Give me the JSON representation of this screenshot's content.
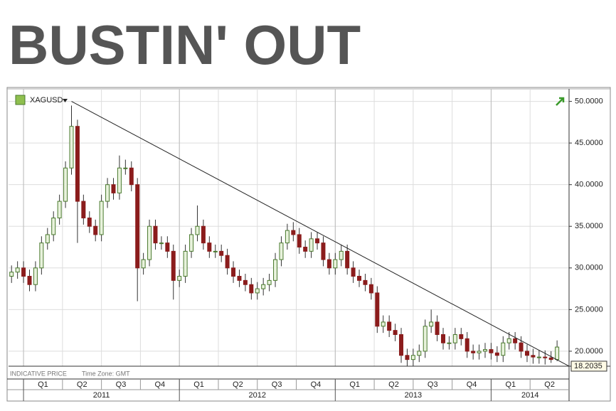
{
  "chart_data": {
    "type": "candlestick",
    "title": "BUSTIN' OUT",
    "symbol": "XAGUSD",
    "footer_note": "INDICATIVE PRICE",
    "time_zone": "Time Zone: GMT",
    "up_color": "#4a7a2e",
    "down_color": "#8b1c1c",
    "grid": true,
    "xlim": [
      0,
      187
    ],
    "ylim": [
      18.2,
      51.5
    ],
    "yticks": [
      {
        "value": 20,
        "label": "20.0000"
      },
      {
        "value": 25,
        "label": "25.0000"
      },
      {
        "value": 30,
        "label": "30.0000"
      },
      {
        "value": 35,
        "label": "35.0000"
      },
      {
        "value": 40,
        "label": "40.0000"
      },
      {
        "value": 45,
        "label": "45.0000"
      },
      {
        "value": 50,
        "label": "50.0000"
      }
    ],
    "xticks": [
      {
        "value": 5,
        "label": "Q1"
      },
      {
        "value": 18,
        "label": "Q2"
      },
      {
        "value": 31,
        "label": "Q3"
      },
      {
        "value": 44,
        "label": "Q4"
      },
      {
        "value": 57,
        "label": "Q1"
      },
      {
        "value": 70,
        "label": "Q2"
      },
      {
        "value": 83,
        "label": "Q3"
      },
      {
        "value": 96,
        "label": "Q4"
      },
      {
        "value": 109,
        "label": "Q1"
      },
      {
        "value": 122,
        "label": "Q2"
      },
      {
        "value": 135,
        "label": "Q3"
      },
      {
        "value": 148,
        "label": "Q4"
      },
      {
        "value": 161,
        "label": "Q1"
      },
      {
        "value": 174,
        "label": "Q2"
      }
    ],
    "years": [
      {
        "value": 5,
        "label": "2011"
      },
      {
        "value": 57,
        "label": "2012"
      },
      {
        "value": 109,
        "label": "2013"
      },
      {
        "value": 161,
        "label": "2014"
      }
    ],
    "trendline": {
      "x": [
        21,
        187
      ],
      "y": [
        50,
        18.2035
      ]
    },
    "x": [
      1,
      3,
      5,
      7,
      9,
      11,
      13,
      15,
      17,
      19,
      21,
      23,
      25,
      27,
      29,
      31,
      33,
      35,
      37,
      39,
      41,
      43,
      45,
      47,
      49,
      51,
      53,
      55,
      57,
      59,
      61,
      63,
      65,
      67,
      69,
      71,
      73,
      75,
      77,
      79,
      81,
      83,
      85,
      87,
      89,
      91,
      93,
      95,
      97,
      99,
      101,
      103,
      105,
      107,
      109,
      111,
      113,
      115,
      117,
      119,
      121,
      123,
      125,
      127,
      129,
      131,
      133,
      135,
      137,
      139,
      141,
      143,
      145,
      147,
      149,
      151,
      153,
      155,
      157,
      159,
      161,
      163,
      165,
      167,
      169,
      171,
      173,
      175,
      177,
      179,
      181,
      183
    ],
    "open": [
      29,
      29.5,
      30,
      29,
      28,
      30,
      33,
      34,
      36,
      38,
      42,
      47,
      38,
      36,
      35,
      34,
      38,
      40,
      39,
      42,
      42,
      40,
      30,
      31,
      35,
      33,
      33,
      32,
      28.5,
      29,
      32,
      34,
      35,
      33,
      32,
      32,
      31.5,
      30,
      29,
      28.5,
      28,
      27,
      27.5,
      28,
      28.5,
      31,
      33,
      34.5,
      34,
      32.5,
      32,
      33.5,
      33,
      31,
      30,
      31,
      32,
      30,
      29,
      28.5,
      28,
      27,
      23,
      23.5,
      22.5,
      22,
      19.5,
      19,
      19.5,
      20,
      23,
      23.5,
      22,
      21,
      21,
      22,
      21.5,
      20,
      19.8,
      20,
      20.2,
      19.8,
      19.5,
      21,
      21.5,
      21,
      20,
      19.5,
      19.3,
      19.3,
      19.2,
      19
    ],
    "high": [
      30.3,
      30.8,
      30.8,
      29.8,
      30.8,
      33.8,
      34.8,
      36.8,
      38.8,
      42.8,
      49.5,
      47.8,
      38.8,
      36.8,
      35.8,
      38.8,
      40.8,
      40.8,
      43.5,
      43,
      42.8,
      40.8,
      31.8,
      35.8,
      35.8,
      33.8,
      33.8,
      32.8,
      29.8,
      32.8,
      34.8,
      37.5,
      35.8,
      33.8,
      32.8,
      32.8,
      32.3,
      30.8,
      29.8,
      29.3,
      28.8,
      28.3,
      28.8,
      29.3,
      31.8,
      33.8,
      35.3,
      35.5,
      34.8,
      33.3,
      34.3,
      34.3,
      33.8,
      31.8,
      31.8,
      32.8,
      32.8,
      30.8,
      29.8,
      29.3,
      28.8,
      27.8,
      24.3,
      24.3,
      23.3,
      22.8,
      20.3,
      20.3,
      20.8,
      23.8,
      25,
      24.3,
      22.8,
      21.8,
      22.8,
      22.8,
      22.3,
      20.8,
      20.8,
      21,
      21,
      20.6,
      21.8,
      22.3,
      22.3,
      21.8,
      20.8,
      20.3,
      20.1,
      20.1,
      20,
      21.3
    ],
    "low": [
      28.2,
      28.7,
      28.2,
      27.2,
      27.2,
      29.2,
      32.2,
      33.2,
      35.2,
      37.2,
      41.2,
      33,
      35.2,
      34.2,
      33.2,
      33.2,
      37.2,
      38.2,
      38.2,
      41.2,
      39.2,
      26,
      29.2,
      30.2,
      32.2,
      32.2,
      31.2,
      26.2,
      27.7,
      28.2,
      31.2,
      33.2,
      32.2,
      31.2,
      31.2,
      30.7,
      29.2,
      28.2,
      27.7,
      27.2,
      26.2,
      26.2,
      26.7,
      27.2,
      27.7,
      30.2,
      32.2,
      33.2,
      31.7,
      31.2,
      31.2,
      32.2,
      30.2,
      29.2,
      29.2,
      30.2,
      29.2,
      28.2,
      27.7,
      27.2,
      26.2,
      22.2,
      22.2,
      21.7,
      21.2,
      18.6,
      18.2,
      18.2,
      18.7,
      19.2,
      22.2,
      21.2,
      20.2,
      20.2,
      20.2,
      20.7,
      19.2,
      19,
      19,
      19.2,
      19,
      18.7,
      18.7,
      20.2,
      20.2,
      19.2,
      18.7,
      18.5,
      18.5,
      18.4,
      18.6,
      18.8
    ],
    "close": [
      29.5,
      30,
      29,
      28,
      30,
      33,
      34,
      36,
      38,
      42,
      47,
      38,
      36,
      35,
      34,
      38,
      40,
      39,
      42,
      42,
      40,
      30,
      31,
      35,
      33,
      33,
      32,
      28.5,
      29,
      32,
      34,
      35,
      33,
      32,
      32,
      31.5,
      30,
      29,
      28.5,
      28,
      27,
      27.5,
      28,
      28.5,
      31,
      33,
      34.5,
      34,
      32.5,
      32,
      33.5,
      33,
      31,
      30,
      31,
      32,
      30,
      29,
      28.5,
      28,
      27,
      23,
      23.5,
      22.5,
      22,
      19.5,
      19,
      19.5,
      20,
      23,
      23.5,
      22,
      21,
      21,
      22,
      21.5,
      20,
      19.8,
      20,
      20.2,
      19.8,
      19.5,
      21,
      21.5,
      21,
      20,
      19.5,
      19.3,
      19.3,
      19.2,
      19,
      20.5
    ]
  }
}
